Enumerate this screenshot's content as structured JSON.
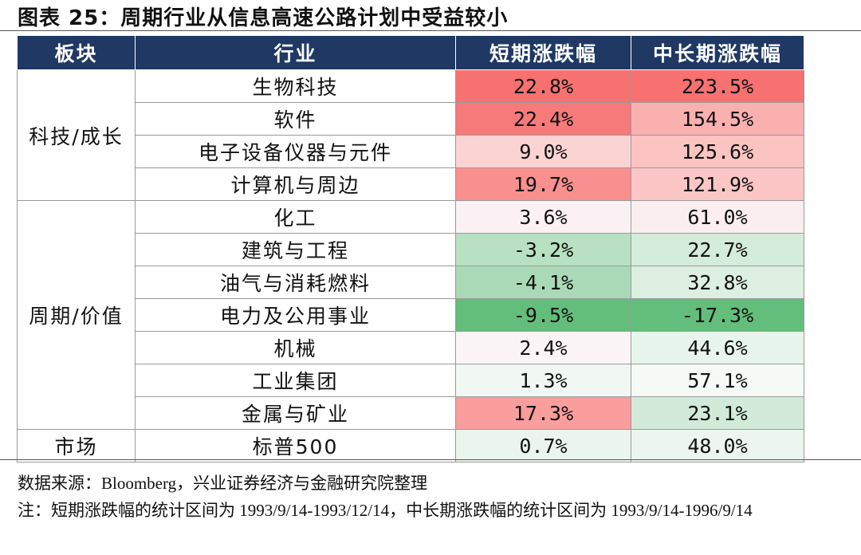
{
  "title": "图表 25：周期行业从信息高速公路计划中受益较小",
  "headers": [
    "板块",
    "行业",
    "短期涨跌幅",
    "中长期涨跌幅"
  ],
  "groups": [
    {
      "label": "科技/成长",
      "rows": [
        {
          "industry": "生物科技",
          "short": "22.8%",
          "long": "223.5%",
          "short_color": "#f87171",
          "long_color": "#f87171"
        },
        {
          "industry": "软件",
          "short": "22.4%",
          "long": "154.5%",
          "short_color": "#f77a7a",
          "long_color": "#fbb0b0"
        },
        {
          "industry": "电子设备仪器与元件",
          "short": "9.0%",
          "long": "125.6%",
          "short_color": "#fcd3d3",
          "long_color": "#fcc3c3"
        },
        {
          "industry": "计算机与周边",
          "short": "19.7%",
          "long": "121.9%",
          "short_color": "#f98f8f",
          "long_color": "#fcc6c6"
        }
      ]
    },
    {
      "label": "周期/价值",
      "rows": [
        {
          "industry": "化工",
          "short": "3.6%",
          "long": "61.0%",
          "short_color": "#fbf0f3",
          "long_color": "#fbeef1"
        },
        {
          "industry": "建筑与工程",
          "short": "-3.2%",
          "long": "22.7%",
          "short_color": "#b8e0c2",
          "long_color": "#d4ecda"
        },
        {
          "industry": "油气与消耗燃料",
          "short": "-4.1%",
          "long": "32.8%",
          "short_color": "#a9d9b6",
          "long_color": "#dcefe1"
        },
        {
          "industry": "电力及公用事业",
          "short": "-9.5%",
          "long": "-17.3%",
          "short_color": "#63be7b",
          "long_color": "#63be7b"
        },
        {
          "industry": "机械",
          "short": "2.4%",
          "long": "44.6%",
          "short_color": "#fcf5f7",
          "long_color": "#e8f5ec"
        },
        {
          "industry": "工业集团",
          "short": "1.3%",
          "long": "57.1%",
          "short_color": "#f1f8f3",
          "long_color": "#f5faf6"
        },
        {
          "industry": "金属与矿业",
          "short": "17.3%",
          "long": "23.1%",
          "short_color": "#f99d9d",
          "long_color": "#d2ebd8"
        }
      ]
    },
    {
      "label": "市场",
      "rows": [
        {
          "industry": "标普500",
          "short": "0.7%",
          "long": "48.0%",
          "short_color": "#eaf6ed",
          "long_color": "#ecf6ef"
        }
      ]
    }
  ],
  "notes": {
    "source": "数据来源：Bloomberg，兴业证券经济与金融研究院整理",
    "note": "注：短期涨跌幅的统计区间为 1993/9/14-1993/12/14，中长期涨跌幅的统计区间为 1993/9/14-1996/9/14"
  }
}
